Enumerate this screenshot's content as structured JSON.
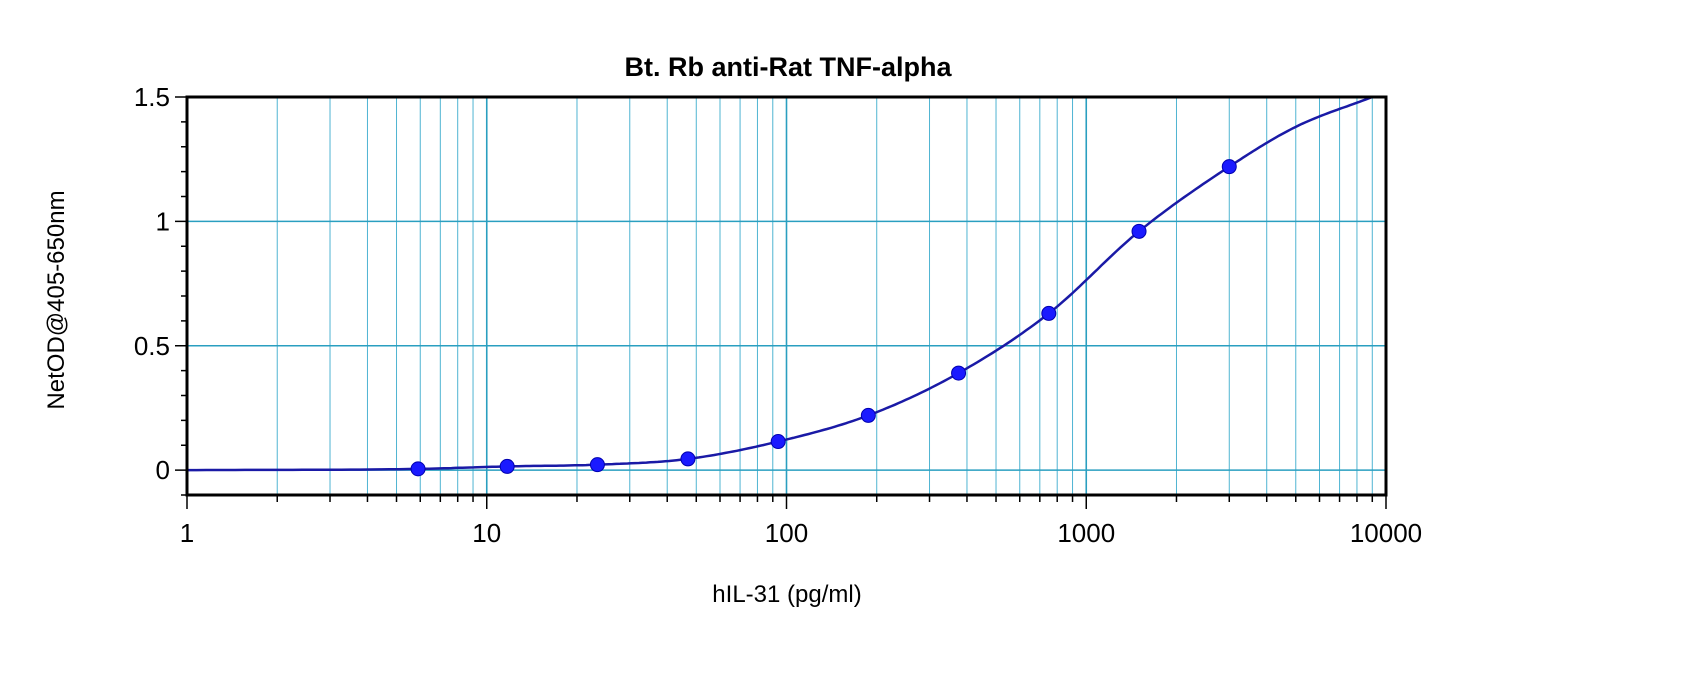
{
  "chart_data": {
    "type": "scatter",
    "title": "Bt. Rb anti-Rat TNF-alpha",
    "xlabel": "hIL-31 (pg/ml)",
    "ylabel": "NetOD@405-650nm",
    "xscale": "log",
    "xlim": [
      1,
      10000
    ],
    "ylim": [
      -0.1,
      1.5
    ],
    "x_ticks": [
      1,
      10,
      100,
      1000,
      10000
    ],
    "x_tick_labels": [
      "1",
      "10",
      "100",
      "1000",
      "10000"
    ],
    "y_ticks": [
      0,
      0.5,
      1,
      1.5
    ],
    "y_tick_labels": [
      "0",
      "0.5",
      "1",
      "1.5"
    ],
    "grid": true,
    "legend": "none",
    "colors": {
      "series": "#1a1aff",
      "curve": "#1a1aa6",
      "grid": "#2a9fc0"
    },
    "series": [
      {
        "x": [
          5.9,
          11.7,
          23.4,
          46.9,
          93.8,
          187.5,
          375,
          750,
          1500,
          3000
        ],
        "y": [
          0.005,
          0.015,
          0.022,
          0.045,
          0.115,
          0.22,
          0.39,
          0.63,
          0.96,
          1.22
        ]
      }
    ],
    "fit_curve": {
      "x": [
        1,
        5.9,
        11.7,
        23.4,
        46.9,
        93.8,
        187.5,
        375,
        750,
        1500,
        3000,
        5000,
        9000
      ],
      "y": [
        0.0,
        0.005,
        0.015,
        0.022,
        0.045,
        0.115,
        0.22,
        0.39,
        0.63,
        0.96,
        1.22,
        1.38,
        1.5
      ]
    }
  }
}
